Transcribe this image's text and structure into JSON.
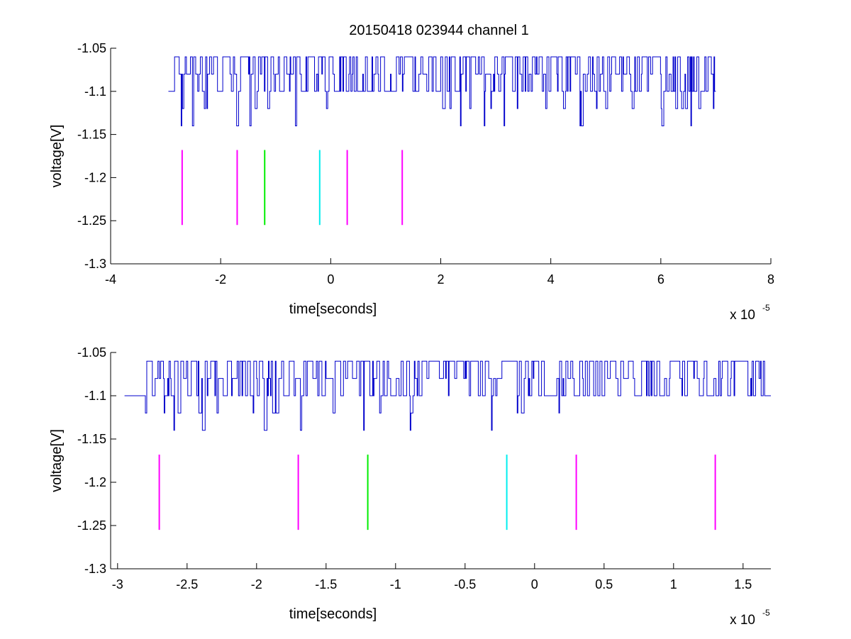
{
  "figure": {
    "title": "20150418 023944 channel 1",
    "colors": {
      "signal": "#0000cc",
      "magenta": "#ff00ff",
      "green": "#00ee00",
      "cyan": "#00eeee",
      "axes": "#000000"
    }
  },
  "chart_data": [
    {
      "type": "line",
      "title": "20150418 023944 channel 1",
      "xlabel": "time[seconds]",
      "ylabel": "voltage[V]",
      "x_multiplier": "x 10",
      "x_multiplier_exponent": "-5",
      "xlim": [
        -4,
        8
      ],
      "ylim": [
        -1.3,
        -1.05
      ],
      "x_ticks": [
        -4,
        -2,
        0,
        2,
        4,
        6,
        8
      ],
      "x_tick_labels": [
        "-4",
        "-2",
        "0",
        "2",
        "4",
        "6",
        "8"
      ],
      "y_ticks": [
        -1.3,
        -1.25,
        -1.2,
        -1.15,
        -1.1,
        -1.05
      ],
      "y_tick_labels": [
        "-1.3",
        "-1.25",
        "-1.2",
        "-1.15",
        "-1.1",
        "-1.05"
      ],
      "grid": false,
      "signal": {
        "x_range": [
          -2.95,
          7.0
        ],
        "baseline": -1.1,
        "levels": [
          -1.06,
          -1.08,
          -1.1,
          -1.12,
          -1.14
        ],
        "dense_until": 7.0,
        "color": "#0000cc"
      },
      "markers": [
        {
          "x": -2.7,
          "y_range": [
            -1.255,
            -1.168
          ],
          "color": "#ff00ff"
        },
        {
          "x": -1.7,
          "y_range": [
            -1.255,
            -1.168
          ],
          "color": "#ff00ff"
        },
        {
          "x": -1.2,
          "y_range": [
            -1.255,
            -1.168
          ],
          "color": "#00ee00"
        },
        {
          "x": -0.2,
          "y_range": [
            -1.255,
            -1.168
          ],
          "color": "#00eeee"
        },
        {
          "x": 0.3,
          "y_range": [
            -1.255,
            -1.168
          ],
          "color": "#ff00ff"
        },
        {
          "x": 1.3,
          "y_range": [
            -1.255,
            -1.168
          ],
          "color": "#ff00ff"
        }
      ]
    },
    {
      "type": "line",
      "title": "",
      "xlabel": "time[seconds]",
      "ylabel": "voltage[V]",
      "x_multiplier": "x 10",
      "x_multiplier_exponent": "-5",
      "xlim": [
        -3.05,
        1.7
      ],
      "ylim": [
        -1.3,
        -1.05
      ],
      "x_ticks": [
        -3,
        -2.5,
        -2,
        -1.5,
        -1,
        -0.5,
        0,
        0.5,
        1,
        1.5
      ],
      "x_tick_labels": [
        "-3",
        "-2.5",
        "-2",
        "-1.5",
        "-1",
        "-0.5",
        "0",
        "0.5",
        "1",
        "1.5"
      ],
      "y_ticks": [
        -1.3,
        -1.25,
        -1.2,
        -1.15,
        -1.1,
        -1.05
      ],
      "y_tick_labels": [
        "-1.3",
        "-1.25",
        "-1.2",
        "-1.15",
        "-1.1",
        "-1.05"
      ],
      "grid": false,
      "signal": {
        "x_range": [
          -2.95,
          1.7
        ],
        "baseline": -1.1,
        "levels": [
          -1.06,
          -1.08,
          -1.1,
          -1.12,
          -1.14
        ],
        "color": "#0000cc"
      },
      "markers": [
        {
          "x": -2.7,
          "y_range": [
            -1.255,
            -1.168
          ],
          "color": "#ff00ff"
        },
        {
          "x": -1.7,
          "y_range": [
            -1.255,
            -1.168
          ],
          "color": "#ff00ff"
        },
        {
          "x": -1.2,
          "y_range": [
            -1.255,
            -1.168
          ],
          "color": "#00ee00"
        },
        {
          "x": -0.2,
          "y_range": [
            -1.255,
            -1.168
          ],
          "color": "#00eeee"
        },
        {
          "x": 0.3,
          "y_range": [
            -1.255,
            -1.168
          ],
          "color": "#ff00ff"
        },
        {
          "x": 1.3,
          "y_range": [
            -1.255,
            -1.168
          ],
          "color": "#ff00ff"
        }
      ]
    }
  ]
}
